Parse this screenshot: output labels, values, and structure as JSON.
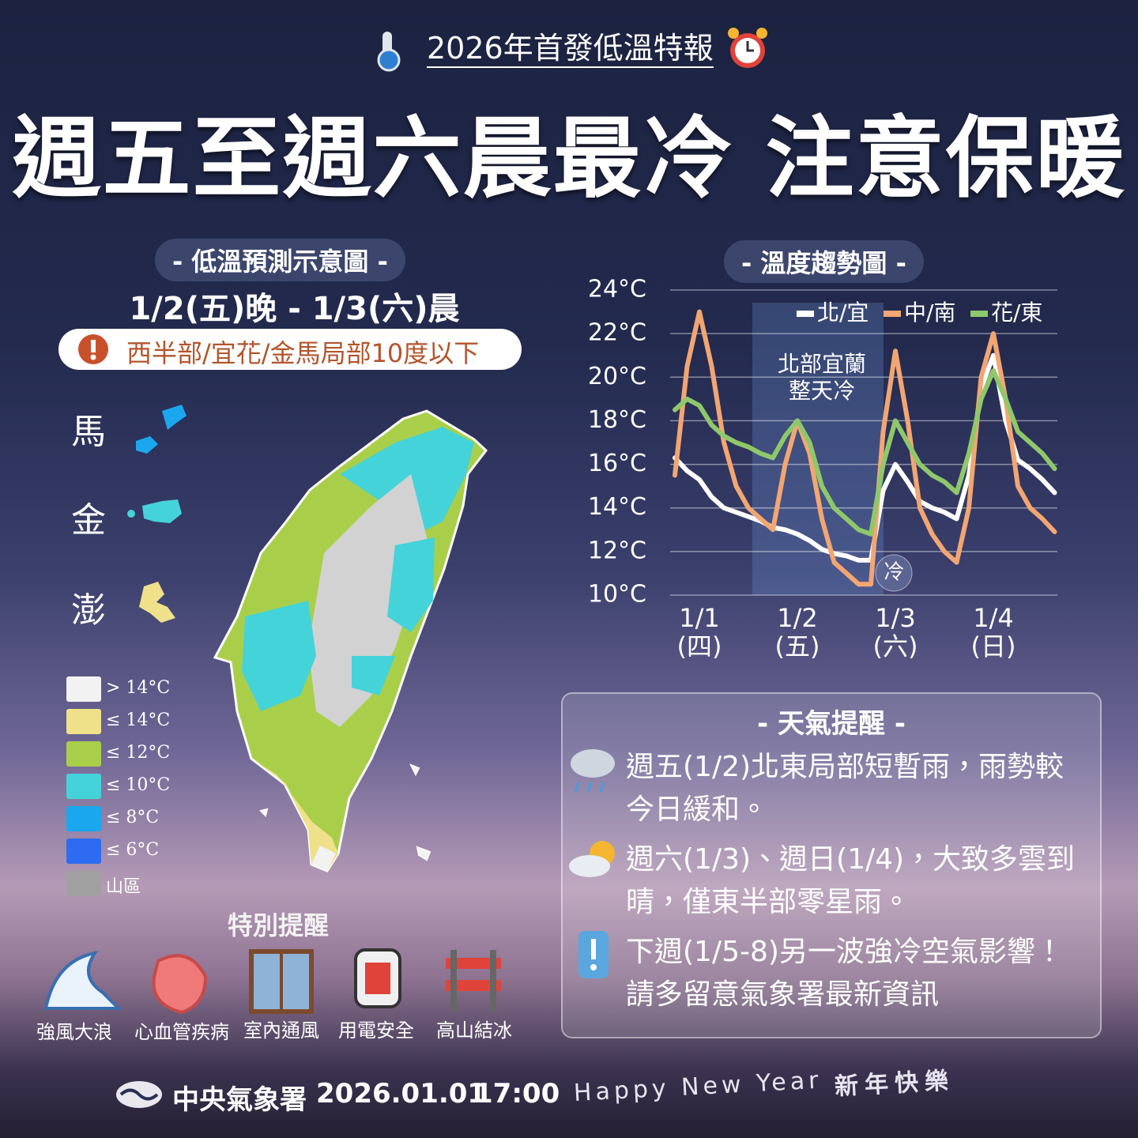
{
  "header": {
    "subtitle": "2026年首發低溫特報",
    "title": "週五至週六晨最冷 注意保暖"
  },
  "map": {
    "title": "- 低溫預測示意圖 -",
    "period": "1/2(五)晚 - 1/3(六)晨",
    "warning": "西半部/宜花/金馬局部10度以下",
    "islands": [
      "馬",
      "金",
      "澎"
    ],
    "legend": [
      "> 14°C",
      "≤ 14°C",
      "≤ 12°C",
      "≤ 10°C",
      "≤ 8°C",
      "≤ 6°C",
      "山區"
    ],
    "legend_colors": [
      "#f2f2f2",
      "#efe08a",
      "#a9cf4a",
      "#44d3d8",
      "#1aa7ee",
      "#2d6cf0",
      "#a0a0a0"
    ]
  },
  "reminders": {
    "title": "特別提醒",
    "items": [
      "強風大浪",
      "心血管疾病",
      "室內通風",
      "用電安全",
      "高山結冰"
    ]
  },
  "tips": {
    "title": "- 天氣提醒 -",
    "items": [
      [
        "週五(1/2)北東局部短暫雨，雨勢較",
        "今日緩和。"
      ],
      [
        "週六(1/3)、週日(1/4)，大致多雲到",
        "晴，僅東半部零星雨。"
      ],
      [
        "下週(1/5-8)另一波強冷空氣影響！",
        "請多留意氣象署最新資訊"
      ]
    ]
  },
  "footer": {
    "agency": "中央氣象署",
    "date": "2026.01.01",
    "time": "17:00",
    "greeting": "Happy New Year",
    "greeting_zh": "新年快樂"
  },
  "chart_data": {
    "type": "line",
    "title": "- 溫度趨勢圖 -",
    "categories": [
      null,
      null,
      "1/1 (四)",
      null,
      null,
      null,
      null,
      null,
      null,
      null,
      "1/2 (五)",
      null,
      null,
      null,
      null,
      null,
      null,
      null,
      "1/3 (六)",
      null,
      null,
      null,
      null,
      null,
      null,
      null,
      "1/4 (日)",
      null,
      null,
      null,
      null,
      null
    ],
    "series": [
      {
        "name": "北/宜",
        "color": "#ffffff",
        "values": [
          16.3,
          15.7,
          15.3,
          14.5,
          14,
          13.8,
          13.6,
          13.4,
          13.1,
          13,
          12.8,
          12.5,
          12.1,
          11.9,
          11.8,
          11.6,
          11.6,
          14.8,
          16,
          15.2,
          14.3,
          14,
          13.8,
          13.5,
          15.5,
          19.5,
          21,
          18,
          16.2,
          15.8,
          15.3,
          14.7
        ]
      },
      {
        "name": "中/南",
        "color": "#f2a672",
        "values": [
          15.5,
          20.5,
          23,
          20.5,
          17,
          15,
          14,
          13.5,
          13,
          16,
          18,
          16.5,
          13.5,
          11.5,
          11,
          10.5,
          10.5,
          17.5,
          21.2,
          18,
          14,
          12.8,
          12,
          11.5,
          14,
          20,
          22,
          19,
          15,
          14,
          13.5,
          12.9
        ]
      },
      {
        "name": "花/東",
        "color": "#8fc86a",
        "values": [
          18.5,
          19,
          18.7,
          17.8,
          17.3,
          17,
          16.8,
          16.5,
          16.3,
          17.3,
          18,
          17,
          15,
          14,
          13.5,
          13,
          12.8,
          16,
          18,
          17,
          16,
          15.5,
          15.2,
          14.7,
          16.5,
          19,
          20.3,
          19,
          17.5,
          17,
          16.5,
          15.8
        ]
      }
    ],
    "ylim": [
      10,
      24
    ],
    "yticks": [
      {
        "value": 10,
        "label": "10°C"
      },
      {
        "value": 12,
        "label": "12°C"
      },
      {
        "value": 14,
        "label": "14°C"
      },
      {
        "value": 16,
        "label": "16°C"
      },
      {
        "value": 18,
        "label": "18°C"
      },
      {
        "value": 20,
        "label": "20°C"
      },
      {
        "value": 22,
        "label": "22°C"
      },
      {
        "value": 24,
        "label": "24°C"
      }
    ],
    "grid": true,
    "legend": "top-right",
    "annotations": [
      "北部宜蘭",
      "整天冷",
      "冷"
    ]
  }
}
